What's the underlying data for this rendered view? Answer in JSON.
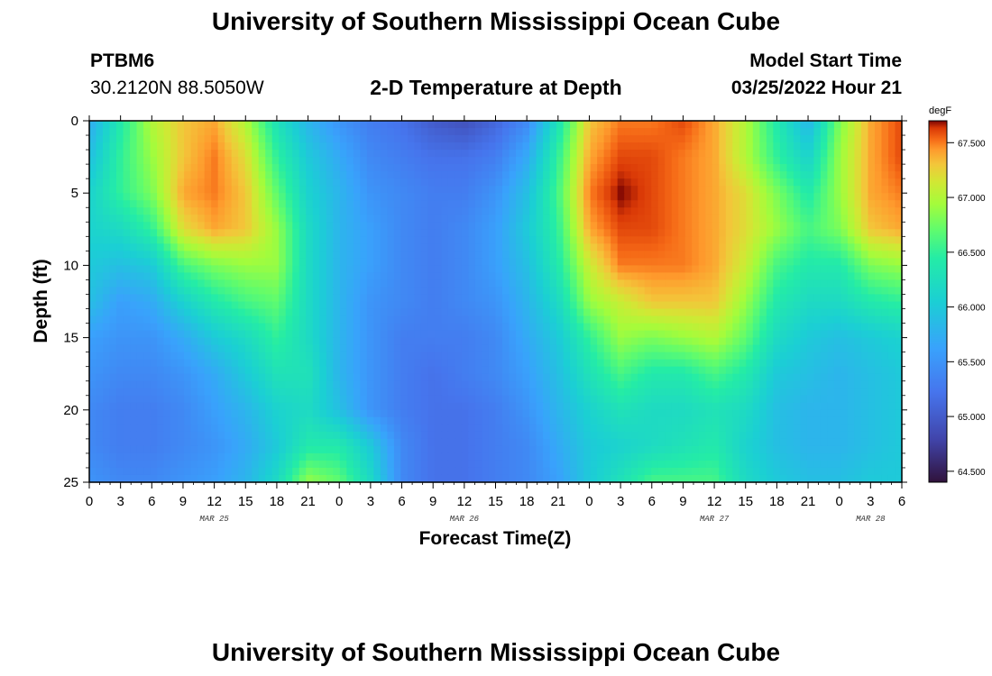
{
  "header": {
    "title": "University of Southern Mississippi Ocean Cube",
    "station": "PTBM6",
    "coords": "30.2120N  88.5050W",
    "plot_title": "2-D Temperature at Depth",
    "model_start_label": "Model Start Time",
    "model_start_value": "03/25/2022 Hour 21"
  },
  "footer": {
    "title": "University of Southern Mississippi Ocean Cube"
  },
  "chart_data": {
    "type": "heatmap",
    "title": "2-D Temperature at Depth",
    "xlabel": "Forecast Time(Z)",
    "ylabel": "Depth (ft)",
    "x_tick_labels": [
      "0",
      "3",
      "6",
      "9",
      "12",
      "15",
      "18",
      "21",
      "0",
      "3",
      "6",
      "9",
      "12",
      "15",
      "18",
      "21",
      "0",
      "3",
      "6",
      "9",
      "12",
      "15",
      "18",
      "21",
      "0",
      "3",
      "6"
    ],
    "date_labels": [
      {
        "label": "MAR 25",
        "hour": 12
      },
      {
        "label": "MAR 26",
        "hour": 36
      },
      {
        "label": "MAR 27",
        "hour": 60
      },
      {
        "label": "MAR 28",
        "hour": 75
      }
    ],
    "x_range_hours": [
      0,
      78
    ],
    "y_ticks": [
      0,
      5,
      10,
      15,
      20,
      25
    ],
    "ylim": [
      0,
      25
    ],
    "y_inverted": true,
    "colorbar": {
      "unit": "degF",
      "range": [
        64.4,
        67.7
      ],
      "ticks": [
        "64.500",
        "65.000",
        "65.500",
        "66.000",
        "66.500",
        "67.000",
        "67.500"
      ]
    },
    "depths_ft": [
      0,
      2.5,
      5,
      7.5,
      10,
      12.5,
      15,
      17.5,
      20,
      22.5,
      25
    ],
    "times_hours": [
      0,
      3,
      6,
      9,
      12,
      15,
      18,
      21,
      24,
      27,
      30,
      33,
      36,
      39,
      42,
      45,
      48,
      51,
      54,
      57,
      60,
      63,
      66,
      69,
      72,
      75,
      78
    ],
    "temperature_degF": [
      [
        65.7,
        66.4,
        67.0,
        67.3,
        67.4,
        67.0,
        66.3,
        65.8,
        65.5,
        65.3,
        65.2,
        65.0,
        64.9,
        65.1,
        65.4,
        66.3,
        67.3,
        67.5,
        67.5,
        67.6,
        67.4,
        67.0,
        66.4,
        65.8,
        66.8,
        67.4,
        67.6
      ],
      [
        65.9,
        66.5,
        66.9,
        67.3,
        67.5,
        67.2,
        66.5,
        66.0,
        65.7,
        65.4,
        65.3,
        65.2,
        65.2,
        65.3,
        65.7,
        66.5,
        67.4,
        67.6,
        67.6,
        67.5,
        67.4,
        67.0,
        66.5,
        66.1,
        66.9,
        67.4,
        67.6
      ],
      [
        66.1,
        66.5,
        66.8,
        67.4,
        67.5,
        67.3,
        66.7,
        66.1,
        65.8,
        65.5,
        65.4,
        65.3,
        65.3,
        65.5,
        65.9,
        66.6,
        67.5,
        67.7,
        67.6,
        67.5,
        67.4,
        67.2,
        66.8,
        66.4,
        66.9,
        67.4,
        67.5
      ],
      [
        66.1,
        66.2,
        66.5,
        67.2,
        67.4,
        67.3,
        66.9,
        66.2,
        65.8,
        65.6,
        65.4,
        65.3,
        65.4,
        65.6,
        66.0,
        66.5,
        67.4,
        67.6,
        67.6,
        67.5,
        67.4,
        67.2,
        66.9,
        66.6,
        66.8,
        67.3,
        67.4
      ],
      [
        66.0,
        65.9,
        66.0,
        66.6,
        66.8,
        66.9,
        66.9,
        66.2,
        65.8,
        65.6,
        65.4,
        65.3,
        65.4,
        65.6,
        65.9,
        66.4,
        67.1,
        67.5,
        67.5,
        67.5,
        67.4,
        67.1,
        66.6,
        66.4,
        66.4,
        66.8,
        66.9
      ],
      [
        65.9,
        65.6,
        65.7,
        66.1,
        66.4,
        66.6,
        66.7,
        66.2,
        65.8,
        65.5,
        65.4,
        65.3,
        65.4,
        65.5,
        65.8,
        66.2,
        66.9,
        67.1,
        67.3,
        67.3,
        67.3,
        66.9,
        66.4,
        66.2,
        66.2,
        66.4,
        66.5
      ],
      [
        65.6,
        65.5,
        65.5,
        65.7,
        66.0,
        66.2,
        66.5,
        66.2,
        65.8,
        65.5,
        65.3,
        65.3,
        65.3,
        65.4,
        65.7,
        66.0,
        66.5,
        66.9,
        66.8,
        66.9,
        67.0,
        66.7,
        66.2,
        66.0,
        65.9,
        66.0,
        66.1
      ],
      [
        65.5,
        65.4,
        65.4,
        65.5,
        65.7,
        66.0,
        66.3,
        66.3,
        65.8,
        65.5,
        65.3,
        65.2,
        65.3,
        65.4,
        65.6,
        65.9,
        66.3,
        66.6,
        66.4,
        66.4,
        66.6,
        66.4,
        66.0,
        65.9,
        65.8,
        65.9,
        66.0
      ],
      [
        65.4,
        65.3,
        65.3,
        65.4,
        65.6,
        65.8,
        66.1,
        66.2,
        65.9,
        65.5,
        65.3,
        65.2,
        65.2,
        65.3,
        65.5,
        65.8,
        66.1,
        66.3,
        66.2,
        66.2,
        66.3,
        66.2,
        65.9,
        65.8,
        65.8,
        65.9,
        66.0
      ],
      [
        65.4,
        65.3,
        65.3,
        65.4,
        65.5,
        65.7,
        66.0,
        66.4,
        66.4,
        66.0,
        65.4,
        65.2,
        65.2,
        65.3,
        65.4,
        65.7,
        66.0,
        66.1,
        66.2,
        66.3,
        66.4,
        66.1,
        65.9,
        65.8,
        65.8,
        65.9,
        66.0
      ],
      [
        65.5,
        65.4,
        65.4,
        65.5,
        65.6,
        65.8,
        66.2,
        66.9,
        66.7,
        66.2,
        65.4,
        65.2,
        65.2,
        65.3,
        65.4,
        65.6,
        66.0,
        66.3,
        66.6,
        66.6,
        66.6,
        66.2,
        66.0,
        65.9,
        65.9,
        66.0,
        66.0
      ]
    ]
  }
}
